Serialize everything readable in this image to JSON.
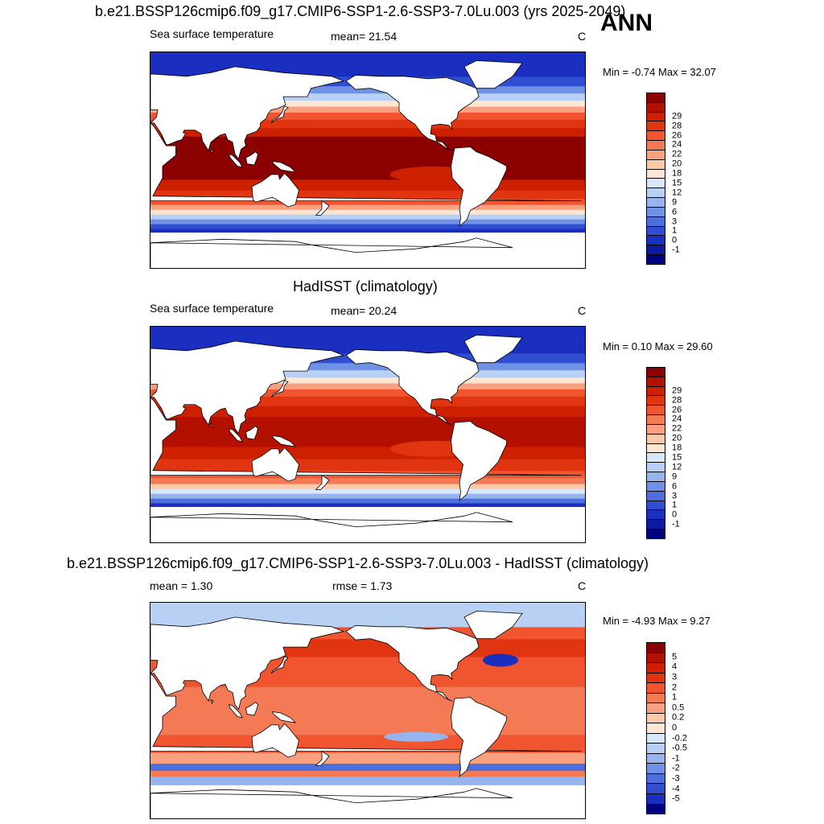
{
  "season": "ANN",
  "panels": [
    {
      "title": "b.e21.BSSP126cmip6.f09_g17.CMIP6-SSP1-2.6-SSP3-7.0Lu.003 (yrs 2025-2049)",
      "left_label": "Sea surface temperature",
      "center_label": "mean=  21.54",
      "units": "C",
      "minmax": "Min =  -0.74 Max =  32.07",
      "levels": [
        "29",
        "28",
        "26",
        "24",
        "22",
        "20",
        "18",
        "15",
        "12",
        "9",
        "6",
        "3",
        "1",
        "0",
        "-1"
      ],
      "colors": [
        "#8b0000",
        "#b31000",
        "#cc2000",
        "#e03510",
        "#f05530",
        "#f47a55",
        "#f8a080",
        "#fbc8a8",
        "#fde6d2",
        "#d9e8f8",
        "#b8d0f3",
        "#96b4ee",
        "#6f92e6",
        "#4d6fdc",
        "#2f4ed0",
        "#1a2fbf",
        "#0d1aa0",
        "#000080"
      ]
    },
    {
      "title": "HadISST (climatology)",
      "left_label": "Sea surface temperature",
      "center_label": "mean=  20.24",
      "units": "C",
      "minmax": "Min =   0.10 Max =  29.60",
      "levels": [
        "29",
        "28",
        "26",
        "24",
        "22",
        "20",
        "18",
        "15",
        "12",
        "9",
        "6",
        "3",
        "1",
        "0",
        "-1"
      ],
      "colors": [
        "#8b0000",
        "#b31000",
        "#cc2000",
        "#e03510",
        "#f05530",
        "#f47a55",
        "#f8a080",
        "#fbc8a8",
        "#fde6d2",
        "#d9e8f8",
        "#b8d0f3",
        "#96b4ee",
        "#6f92e6",
        "#4d6fdc",
        "#2f4ed0",
        "#1a2fbf",
        "#0d1aa0",
        "#000080"
      ]
    },
    {
      "title": "b.e21.BSSP126cmip6.f09_g17.CMIP6-SSP1-2.6-SSP3-7.0Lu.003 - HadISST (climatology)",
      "left_label": "mean =   1.30",
      "center_label": "rmse =   1.73",
      "units": "C",
      "minmax": "Min =  -4.93 Max =   9.27",
      "levels": [
        "5",
        "4",
        "3",
        "2",
        "1",
        "0.5",
        "0.2",
        "0",
        "-0.2",
        "-0.5",
        "-1",
        "-2",
        "-3",
        "-4",
        "-5"
      ],
      "colors": [
        "#8b0000",
        "#b31000",
        "#cc2000",
        "#e03510",
        "#f05530",
        "#f47a55",
        "#f8a080",
        "#fbc8a8",
        "#fde6d2",
        "#d9e8f8",
        "#b8d0f3",
        "#96b4ee",
        "#6f92e6",
        "#4d6fdc",
        "#2f4ed0",
        "#1a2fbf",
        "#000080"
      ]
    }
  ]
}
